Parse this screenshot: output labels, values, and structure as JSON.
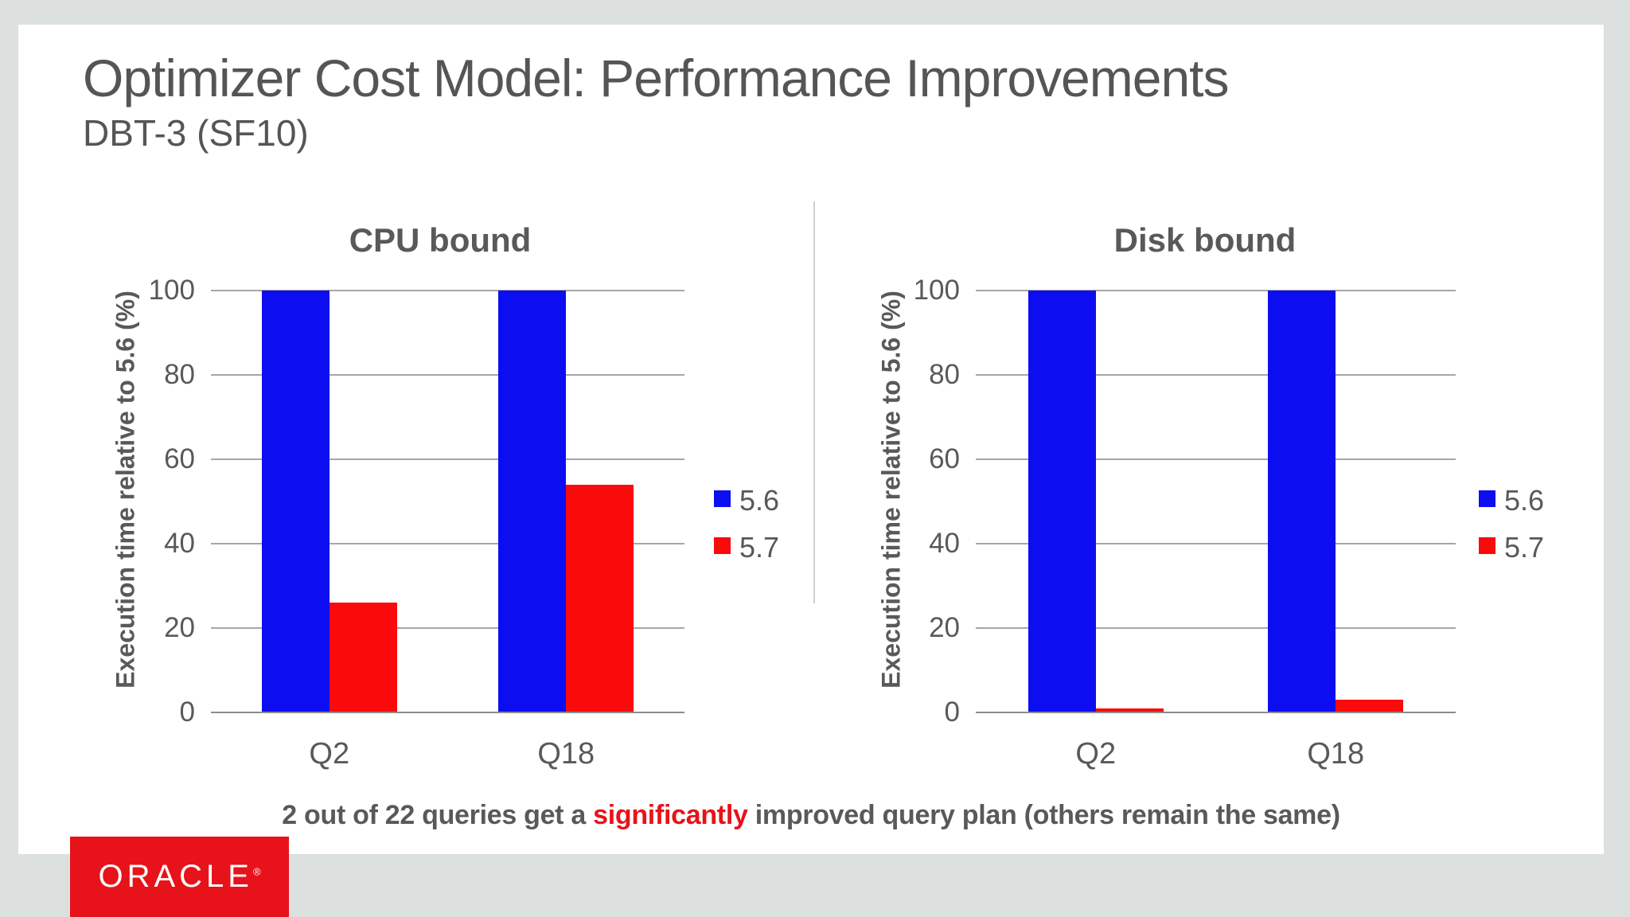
{
  "slide": {
    "title": "Optimizer Cost Model: Performance Improvements",
    "subtitle": "DBT-3 (SF10)",
    "caption": {
      "prefix": "2 out of 22 queries get a ",
      "highlight": "significantly",
      "suffix": " improved query plan (others remain the same)"
    },
    "logo": {
      "brand": "ORACLE",
      "registered": "®"
    }
  },
  "colors": {
    "background": "#dce0df",
    "slide_background": "#ffffff",
    "text_gray": "#595959",
    "series_56_blue": "#0d0df2",
    "series_57_red": "#fa0a0a",
    "accent_red": "#e8121a",
    "gridline_gray": "#a6a6a6"
  },
  "chart_data": [
    {
      "type": "bar",
      "title": "CPU bound",
      "categories": [
        "Q2",
        "Q18"
      ],
      "series": [
        {
          "name": "5.6",
          "color_key": "series_56_blue",
          "values": [
            100,
            100
          ]
        },
        {
          "name": "5.7",
          "color_key": "series_57_red",
          "values": [
            26,
            54
          ]
        }
      ],
      "xlabel": "",
      "ylabel": "Execution time relative to 5.6 (%)",
      "ylim": [
        0,
        100
      ],
      "yticks": [
        0,
        20,
        40,
        60,
        80,
        100
      ],
      "grid": true,
      "legend_position": "right"
    },
    {
      "type": "bar",
      "title": "Disk bound",
      "categories": [
        "Q2",
        "Q18"
      ],
      "series": [
        {
          "name": "5.6",
          "color_key": "series_56_blue",
          "values": [
            100,
            100
          ]
        },
        {
          "name": "5.7",
          "color_key": "series_57_red",
          "values": [
            1,
            3
          ]
        }
      ],
      "xlabel": "",
      "ylabel": "Execution time relative to 5.6 (%)",
      "ylim": [
        0,
        100
      ],
      "yticks": [
        0,
        20,
        40,
        60,
        80,
        100
      ],
      "grid": true,
      "legend_position": "right"
    }
  ]
}
